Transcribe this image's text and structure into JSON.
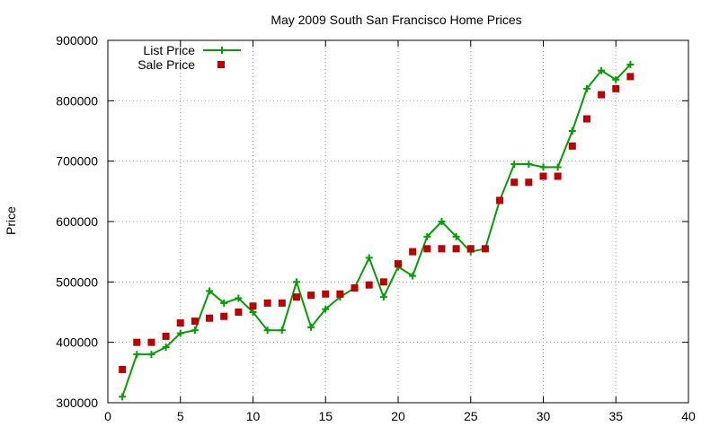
{
  "chart_data": {
    "type": "line",
    "title": "May 2009 South San Francisco Home Prices",
    "xlabel": "",
    "ylabel": "Price",
    "xlim": [
      0,
      40
    ],
    "ylim": [
      300000,
      900000
    ],
    "x_ticks": [
      0,
      5,
      10,
      15,
      20,
      25,
      30,
      35,
      40
    ],
    "y_ticks": [
      300000,
      400000,
      500000,
      600000,
      700000,
      800000,
      900000
    ],
    "grid": true,
    "legend_position": "top-left",
    "series": [
      {
        "name": "List Price",
        "style": "line-plus",
        "color": "#00a000",
        "x": [
          1,
          2,
          3,
          4,
          5,
          6,
          7,
          8,
          9,
          10,
          11,
          12,
          13,
          14,
          15,
          16,
          17,
          18,
          19,
          20,
          21,
          22,
          23,
          24,
          25,
          26,
          27,
          28,
          29,
          30,
          31,
          32,
          33,
          34,
          35,
          36
        ],
        "y": [
          310000,
          380000,
          380000,
          392000,
          415000,
          420000,
          485000,
          465000,
          473000,
          450000,
          420000,
          420000,
          500000,
          425000,
          455000,
          475000,
          490000,
          540000,
          475000,
          525000,
          510000,
          575000,
          600000,
          575000,
          550000,
          555000,
          635000,
          695000,
          695000,
          690000,
          690000,
          750000,
          820000,
          850000,
          835000,
          860000
        ]
      },
      {
        "name": "Sale Price",
        "style": "square-points",
        "color": "#c00000",
        "x": [
          1,
          2,
          3,
          4,
          5,
          6,
          7,
          8,
          9,
          10,
          11,
          12,
          13,
          14,
          15,
          16,
          17,
          18,
          19,
          20,
          21,
          22,
          23,
          24,
          25,
          26,
          27,
          28,
          29,
          30,
          31,
          32,
          33,
          34,
          35,
          36
        ],
        "y": [
          355000,
          400000,
          400000,
          410000,
          432000,
          435000,
          440000,
          443000,
          450000,
          460000,
          465000,
          465000,
          475000,
          478000,
          480000,
          480000,
          490000,
          495000,
          500000,
          530000,
          550000,
          555000,
          555000,
          555000,
          555000,
          555000,
          635000,
          665000,
          665000,
          675000,
          675000,
          725000,
          770000,
          810000,
          820000,
          840000
        ]
      }
    ]
  }
}
